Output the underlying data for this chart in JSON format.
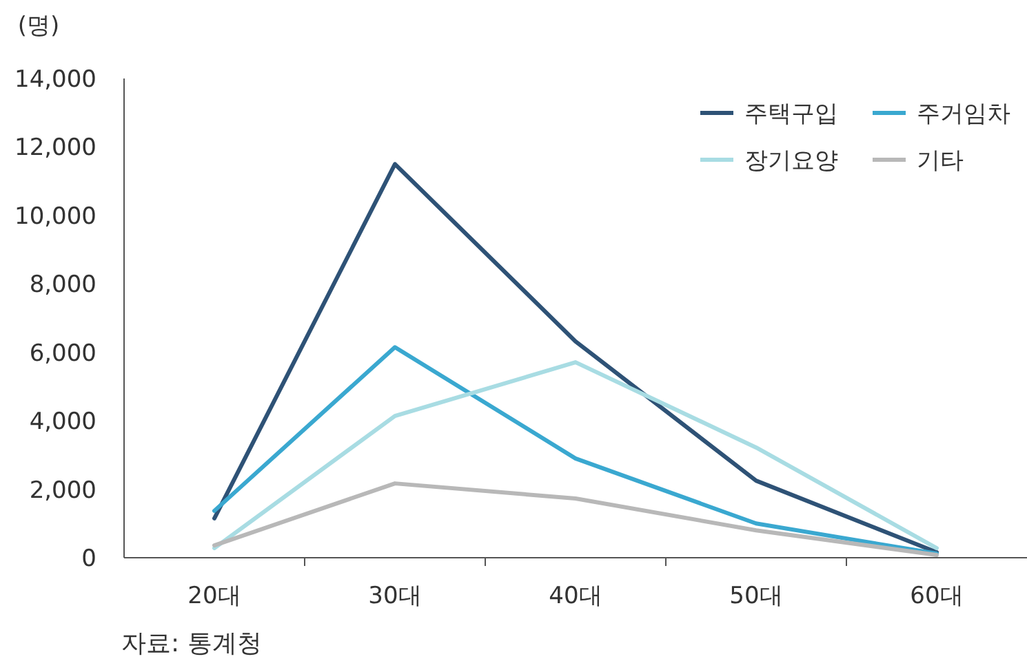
{
  "chart_data": {
    "type": "line",
    "ylabel": "(명)",
    "categories": [
      "20대",
      "30대",
      "40대",
      "50대",
      "60대"
    ],
    "series": [
      {
        "name": "주택구입",
        "color": "#2e5276",
        "values": [
          1150,
          11500,
          6320,
          2250,
          160
        ]
      },
      {
        "name": "주거임차",
        "color": "#3aa8d0",
        "values": [
          1370,
          6150,
          2900,
          1000,
          120
        ]
      },
      {
        "name": "장기요양",
        "color": "#a8dce3",
        "values": [
          280,
          4140,
          5710,
          3220,
          280
        ]
      },
      {
        "name": "기타",
        "color": "#b8b8b8",
        "values": [
          360,
          2170,
          1730,
          800,
          80
        ]
      }
    ],
    "ylim": [
      0,
      14000
    ],
    "yticks": [
      {
        "value": 0,
        "label": "0"
      },
      {
        "value": 2000,
        "label": "2,000"
      },
      {
        "value": 4000,
        "label": "4,000"
      },
      {
        "value": 6000,
        "label": "6,000"
      },
      {
        "value": 8000,
        "label": "8,000"
      },
      {
        "value": 10000,
        "label": "10,000"
      },
      {
        "value": 12000,
        "label": "12,000"
      },
      {
        "value": 14000,
        "label": "14,000"
      }
    ],
    "grid": false,
    "legend": "top right",
    "marker": "none",
    "line_style": "solid",
    "annotations": [
      "자료: 통계청"
    ]
  }
}
